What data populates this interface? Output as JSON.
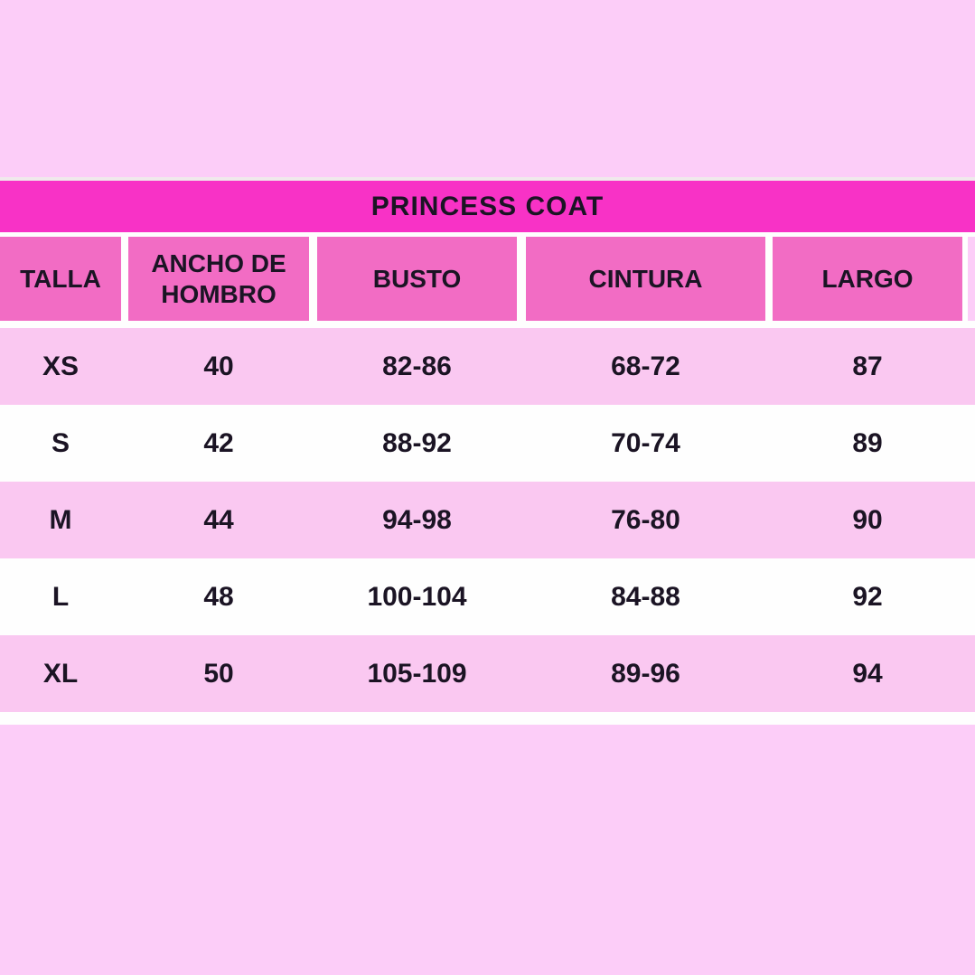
{
  "chart_data": {
    "type": "table",
    "title": "PRINCESS COAT",
    "columns": [
      "TALLA",
      "ANCHO DE HOMBRO",
      "BUSTO",
      "CINTURA",
      "LARGO"
    ],
    "rows": [
      [
        "XS",
        "40",
        "82-86",
        "68-72",
        "87"
      ],
      [
        "S",
        "42",
        "88-92",
        "70-74",
        "89"
      ],
      [
        "M",
        "44",
        "94-98",
        "76-80",
        "90"
      ],
      [
        "L",
        "48",
        "100-104",
        "84-88",
        "92"
      ],
      [
        "XL",
        "50",
        "105-109",
        "89-96",
        "94"
      ]
    ],
    "layout": {
      "row_striping": [
        "pink",
        "white",
        "pink",
        "white",
        "pink"
      ],
      "header_style": "separate pink cells with white gaps",
      "title_position": "full-width magenta banner above header"
    }
  },
  "colors": {
    "page_background": "#fccdf8",
    "title_bar": "#f832c6",
    "header_cell": "#f26cc4",
    "row_pink": "#fac8f1",
    "row_white": "#fefefe",
    "text": "#1b1424"
  }
}
